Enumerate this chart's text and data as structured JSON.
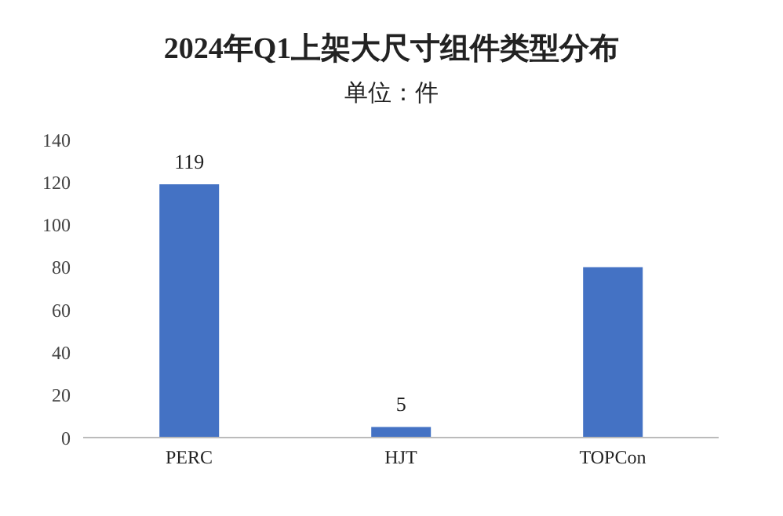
{
  "chart_data": {
    "type": "bar",
    "title": "2024年Q1上架大尺寸组件类型分布",
    "subtitle": "单位：件",
    "categories": [
      "PERC",
      "HJT",
      "TOPCon"
    ],
    "values": [
      119,
      5,
      80
    ],
    "value_labels": [
      "119",
      "5",
      null
    ],
    "color": "#4472c4",
    "ylim": [
      0,
      140
    ],
    "yticks": [
      0,
      20,
      40,
      60,
      80,
      100,
      120,
      140
    ],
    "grid": false
  }
}
